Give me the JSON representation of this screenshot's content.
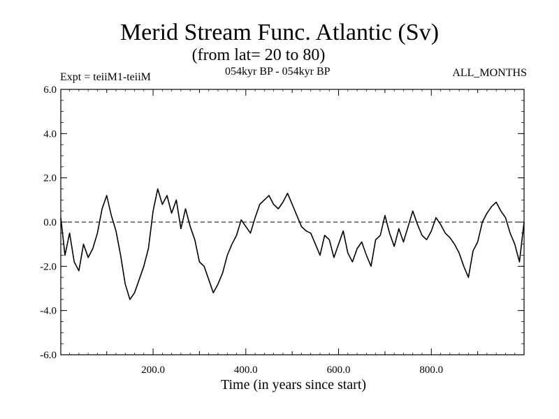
{
  "header": {
    "title": "Merid Stream Func. Atlantic (Sv)",
    "subtitle": "(from lat= 20 to 80)",
    "expt": "Expt = teiiM1-teiiM",
    "period": "054kyr BP - 054kyr BP",
    "months": "ALL_MONTHS"
  },
  "chart_data": {
    "type": "line",
    "title": "Merid Stream Func. Atlantic (Sv)",
    "subtitle": "(from lat= 20 to 80)",
    "xlabel": "Time (in years since start)",
    "ylabel": "",
    "xlim": [
      1,
      1000
    ],
    "ylim": [
      -6.0,
      6.0
    ],
    "xticks": [
      200,
      400,
      600,
      800
    ],
    "xtick_labels": [
      "200.0",
      "400.0",
      "600.0",
      "800.0"
    ],
    "yticks": [
      -6,
      -4,
      -2,
      0,
      2,
      4,
      6
    ],
    "ytick_labels": [
      "-6.0",
      "-4.0",
      "-2.0",
      "0.0",
      "2.0",
      "4.0",
      "6.0"
    ],
    "zero_line": "dashed",
    "grid": false,
    "line_color": "#000000",
    "series": [
      {
        "x": [
          1,
          10,
          20,
          30,
          40,
          50,
          60,
          70,
          80,
          90,
          100,
          110,
          120,
          130,
          140,
          150,
          160,
          170,
          180,
          190,
          200,
          210,
          220,
          230,
          240,
          250,
          260,
          270,
          280,
          290,
          300,
          310,
          320,
          330,
          340,
          350,
          360,
          370,
          380,
          390,
          400,
          410,
          420,
          430,
          440,
          450,
          460,
          470,
          480,
          490,
          500,
          510,
          520,
          530,
          540,
          550,
          560,
          570,
          580,
          590,
          600,
          610,
          620,
          630,
          640,
          650,
          660,
          670,
          680,
          690,
          700,
          710,
          720,
          730,
          740,
          750,
          760,
          770,
          780,
          790,
          800,
          810,
          820,
          830,
          840,
          850,
          860,
          870,
          880,
          890,
          900,
          910,
          920,
          930,
          940,
          950,
          960,
          970,
          980,
          990,
          1000
        ],
        "values": [
          0.2,
          -1.5,
          -0.5,
          -1.8,
          -2.2,
          -1.0,
          -1.6,
          -1.2,
          -0.5,
          0.6,
          1.2,
          0.3,
          -0.4,
          -1.5,
          -2.8,
          -3.5,
          -3.2,
          -2.6,
          -2.0,
          -1.2,
          0.5,
          1.5,
          0.8,
          1.2,
          0.4,
          1.0,
          -0.3,
          0.6,
          -0.2,
          -0.8,
          -1.8,
          -2.0,
          -2.6,
          -3.2,
          -2.8,
          -2.3,
          -1.5,
          -1.0,
          -0.6,
          0.1,
          -0.2,
          -0.5,
          0.2,
          0.8,
          1.0,
          1.2,
          0.8,
          0.6,
          0.9,
          1.3,
          0.8,
          0.3,
          -0.2,
          -0.4,
          -0.5,
          -1.0,
          -1.5,
          -0.6,
          -0.8,
          -1.6,
          -1.0,
          -0.4,
          -1.4,
          -1.8,
          -1.2,
          -0.9,
          -1.5,
          -2.0,
          -0.8,
          -0.6,
          0.3,
          -0.5,
          -1.1,
          -0.3,
          -0.9,
          -0.2,
          0.5,
          -0.1,
          -0.6,
          -0.8,
          -0.4,
          0.2,
          -0.1,
          -0.5,
          -0.7,
          -1.0,
          -1.4,
          -2.0,
          -2.5,
          -1.3,
          -0.9,
          0.0,
          0.4,
          0.7,
          0.9,
          0.5,
          0.2,
          -0.5,
          -1.0,
          -1.8,
          0.0
        ]
      }
    ]
  }
}
